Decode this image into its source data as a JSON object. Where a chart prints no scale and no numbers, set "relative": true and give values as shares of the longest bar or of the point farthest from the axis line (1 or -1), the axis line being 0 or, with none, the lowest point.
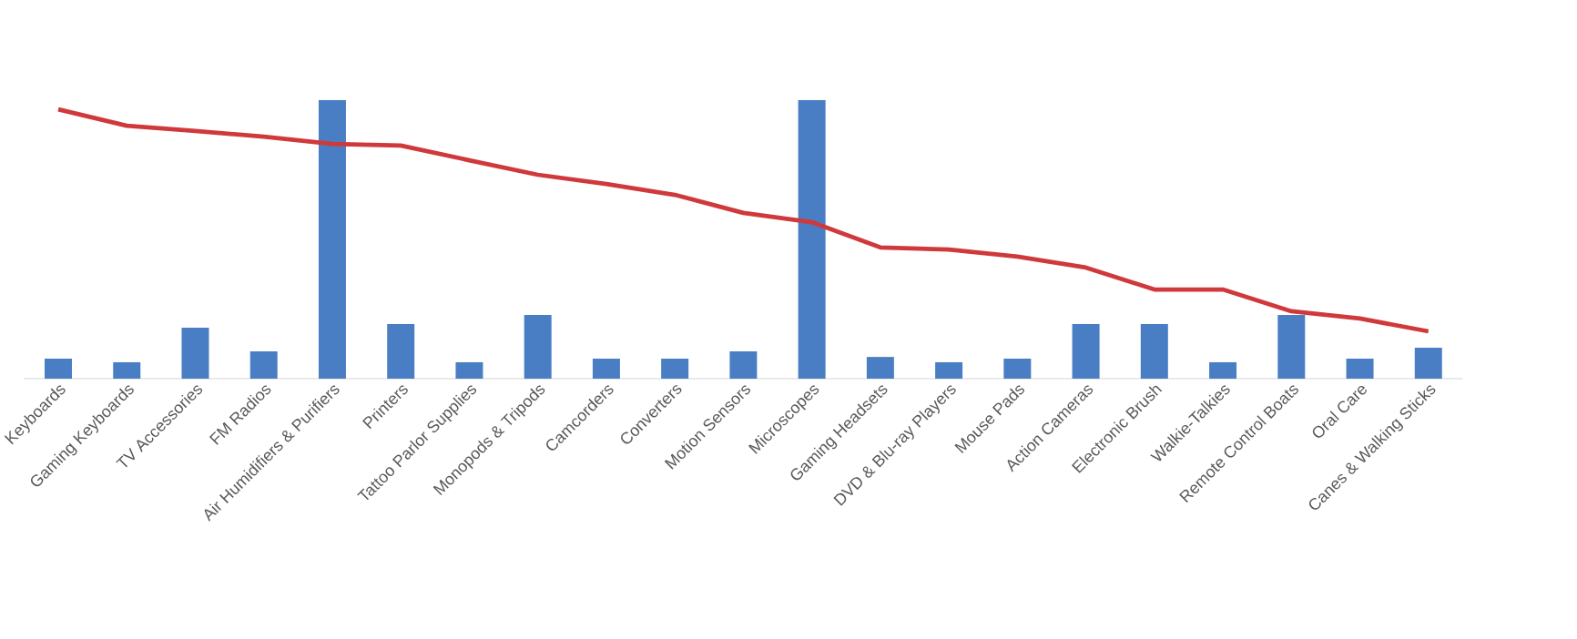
{
  "chart_data": {
    "type": "bar",
    "relative": true,
    "categories": [
      "Keyboards",
      "Gaming Keyboards",
      "TV Accessories",
      "FM Radios",
      "Air Humidifiers & Purifiers",
      "Printers",
      "Tattoo Parlor Supplies",
      "Monopods & Tripods",
      "Camcorders",
      "Converters",
      "Motion Sensors",
      "Microscopes",
      "Gaming Headsets",
      "DVD & Blu-ray Players",
      "Mouse Pads",
      "Action Cameras",
      "Electronic Brush",
      "Walkie-Talkies",
      "Remote Control Boats",
      "Oral Care",
      "Canes & Walking Sticks"
    ],
    "series": [
      {
        "color": "#4a7ec4",
        "values": [
          0.072,
          0.059,
          0.183,
          0.098,
          1,
          0.196,
          0.059,
          0.229,
          0.072,
          0.072,
          0.098,
          1,
          0.078,
          0.059,
          0.072,
          0.196,
          0.196,
          0.059,
          0.229,
          0.072,
          0.111
        ]
      },
      {
        "type": "line",
        "color": "#d0393b",
        "values": [
          0.967,
          0.908,
          0.889,
          0.869,
          0.843,
          0.837,
          0.784,
          0.732,
          0.699,
          0.66,
          0.595,
          0.562,
          0.471,
          0.464,
          0.438,
          0.399,
          0.32,
          0.32,
          0.242,
          0.216,
          0.17
        ]
      }
    ],
    "grid": false
  }
}
